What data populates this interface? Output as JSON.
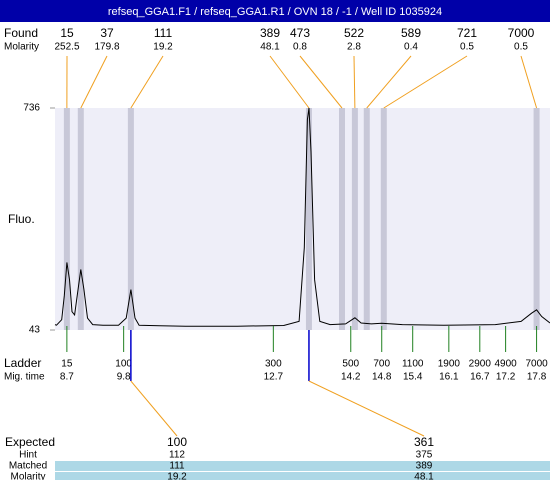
{
  "chart_data": {
    "type": "line",
    "title": "refseq_GGA1.F1 / refseq_GGA1.R1 / OVN 18 / -1 / Well ID 1035924",
    "ylabel": "Fluo.",
    "xlim": [
      8.47,
      18.06
    ],
    "ylim": [
      43,
      736
    ],
    "yticks": [
      43,
      736
    ],
    "line_color": "#000000",
    "x": [
      8.47,
      8.5,
      8.6,
      8.65,
      8.7,
      8.75,
      8.8,
      8.85,
      8.9,
      8.97,
      9.03,
      9.1,
      9.2,
      9.4,
      9.7,
      9.85,
      9.94,
      10.02,
      10.1,
      10.5,
      11,
      12,
      12.9,
      13.2,
      13.3,
      13.36,
      13.39,
      13.43,
      13.5,
      13.6,
      13.8,
      14.1,
      14.28,
      14.4,
      14.6,
      14.8,
      15.2,
      16,
      17,
      17.5,
      17.7,
      17.8,
      17.9,
      18.06
    ],
    "values": [
      60,
      58,
      75,
      150,
      254,
      200,
      100,
      90,
      150,
      232,
      170,
      80,
      60,
      58,
      58,
      80,
      169,
      80,
      58,
      56,
      55,
      55,
      57,
      70,
      300,
      700,
      736,
      600,
      200,
      70,
      60,
      62,
      81,
      65,
      62,
      64,
      60,
      58,
      60,
      70,
      95,
      106,
      85,
      65
    ],
    "found": {
      "label": "Found",
      "molarity_label": "Molarity",
      "color": "#f0a020",
      "band_color": "#c8c8d8",
      "sizes": [
        15,
        37,
        111,
        389,
        473,
        522,
        589,
        721,
        7000
      ],
      "molarity": [
        252.5,
        179.8,
        19.2,
        48.1,
        0.8,
        2.8,
        0.4,
        0.5,
        0.5
      ],
      "x": [
        8.7,
        8.97,
        9.94,
        13.39,
        14.03,
        14.28,
        14.51,
        14.84,
        17.8
      ]
    },
    "ladder": {
      "label": "Ladder",
      "time_label": "Mig. time",
      "color": "#208020",
      "sizes": [
        15,
        100,
        300,
        500,
        700,
        1100,
        1900,
        2900,
        4900,
        7000
      ],
      "times": [
        8.7,
        9.8,
        12.7,
        14.2,
        14.8,
        15.4,
        16.1,
        16.7,
        17.2,
        17.8
      ]
    },
    "expected": {
      "label": "Expected",
      "hint_label": "Hint",
      "matched_label": "Matched",
      "molarity_label": "Molarity",
      "marker_color": "#0000cc",
      "row_color": "#add8e6",
      "expected": [
        100,
        361
      ],
      "hint": [
        112,
        375
      ],
      "matched": [
        111,
        389
      ],
      "molarity": [
        19.2,
        48.1
      ]
    }
  }
}
